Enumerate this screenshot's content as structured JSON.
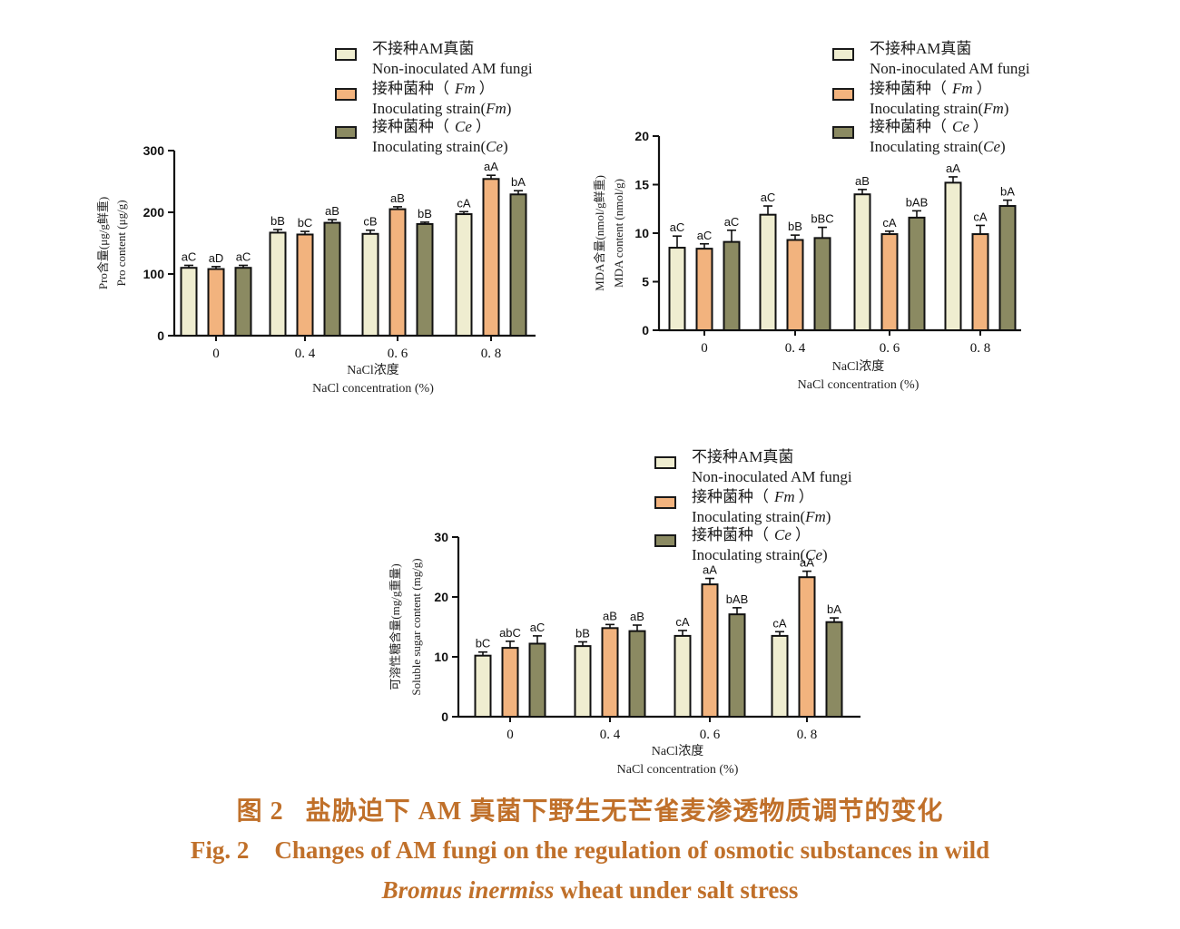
{
  "legend": [
    {
      "cn": "不接种AM真菌",
      "en": "Non-inoculated AM fungi",
      "en_prefix": "",
      "en_italic": "",
      "en_suffix": ""
    },
    {
      "cn": "接种菌种（",
      "cn_italic": "Fm",
      "cn_suffix": "）",
      "en": "",
      "en_prefix": "Inoculating strain(",
      "en_italic": "Fm",
      "en_suffix": ")"
    },
    {
      "cn": "接种菌种（",
      "cn_italic": "Ce",
      "cn_suffix": "）",
      "en": "",
      "en_prefix": "Inoculating strain(",
      "en_italic": "Ce",
      "en_suffix": ")"
    }
  ],
  "colors": {
    "non_inoculated": "#efedd0",
    "fm": "#f2b37e",
    "ce": "#8b8a62",
    "caption": "#c0702a"
  },
  "caption": {
    "cn_label": "图 2",
    "cn_title": "盐胁迫下 AM 真菌下野生无芒雀麦渗透物质调节的变化",
    "en_label": "Fig. 2",
    "en_title_line1": "Changes of AM fungi on the regulation of osmotic substances in wild",
    "en_title_line2_italic": "Bromus inermiss",
    "en_title_line2_rest": "wheat under salt stress"
  },
  "chart_data": [
    {
      "type": "bar",
      "categories": [
        "0",
        "0. 4",
        "0. 6",
        "0. 8"
      ],
      "ylabel_cn": "Pro含量(μg/g鲜重)",
      "ylabel_en": "Pro content (μg/g)",
      "xlabel_cn": "NaCl浓度",
      "xlabel_en": "NaCl concentration (%)",
      "ylim": [
        0,
        300
      ],
      "yticks": [
        0,
        100,
        200,
        300
      ],
      "series": [
        {
          "values": [
            110,
            167,
            165,
            197
          ],
          "errors": [
            4,
            5,
            6,
            4
          ],
          "labels": [
            "aC",
            "bB",
            "cB",
            "cA"
          ]
        },
        {
          "values": [
            108,
            164,
            205,
            254
          ],
          "errors": [
            4,
            5,
            4,
            6
          ],
          "labels": [
            "aD",
            "bC",
            "aB",
            "aA"
          ]
        },
        {
          "values": [
            110,
            183,
            181,
            229
          ],
          "errors": [
            4,
            5,
            3,
            6
          ],
          "labels": [
            "aC",
            "aB",
            "bB",
            "bA"
          ]
        }
      ]
    },
    {
      "type": "bar",
      "categories": [
        "0",
        "0. 4",
        "0. 6",
        "0. 8"
      ],
      "ylabel_cn": "MDA含量(nmol/g鲜重)",
      "ylabel_en": "MDA content (nmol/g)",
      "xlabel_cn": "NaCl浓度",
      "xlabel_en": "NaCl concentration (%)",
      "ylim": [
        0,
        20
      ],
      "yticks": [
        0,
        5,
        10,
        15,
        20
      ],
      "series": [
        {
          "values": [
            8.5,
            11.9,
            14.0,
            15.2
          ],
          "errors": [
            1.2,
            0.9,
            0.5,
            0.6
          ],
          "labels": [
            "aC",
            "aC",
            "aB",
            "aA"
          ]
        },
        {
          "values": [
            8.4,
            9.3,
            9.9,
            9.9
          ],
          "errors": [
            0.5,
            0.5,
            0.3,
            0.9
          ],
          "labels": [
            "aC",
            "bB",
            "cA",
            "cA"
          ]
        },
        {
          "values": [
            9.1,
            9.5,
            11.6,
            12.8
          ],
          "errors": [
            1.2,
            1.1,
            0.7,
            0.6
          ],
          "labels": [
            "aC",
            "bBC",
            "bAB",
            "bA"
          ]
        }
      ]
    },
    {
      "type": "bar",
      "categories": [
        "0",
        "0. 4",
        "0. 6",
        "0. 8"
      ],
      "ylabel_cn": "可溶性糖含量(mg/g重量)",
      "ylabel_en": "Soluble sugar content (mg/g)",
      "xlabel_cn": "NaCl浓度",
      "xlabel_en": "NaCl concentration (%)",
      "ylim": [
        0,
        30
      ],
      "yticks": [
        0,
        10,
        20,
        30
      ],
      "series": [
        {
          "values": [
            10.2,
            11.8,
            13.5,
            13.5
          ],
          "errors": [
            0.6,
            0.7,
            0.9,
            0.7
          ],
          "labels": [
            "bC",
            "bB",
            "cA",
            "cA"
          ]
        },
        {
          "values": [
            11.5,
            14.8,
            22.1,
            23.3
          ],
          "errors": [
            1.1,
            0.6,
            1.0,
            1.0
          ],
          "labels": [
            "abC",
            "aB",
            "aA",
            "aA"
          ]
        },
        {
          "values": [
            12.2,
            14.3,
            17.1,
            15.8
          ],
          "errors": [
            1.3,
            1.0,
            1.1,
            0.7
          ],
          "labels": [
            "aC",
            "aB",
            "bAB",
            "bA"
          ]
        }
      ]
    }
  ]
}
